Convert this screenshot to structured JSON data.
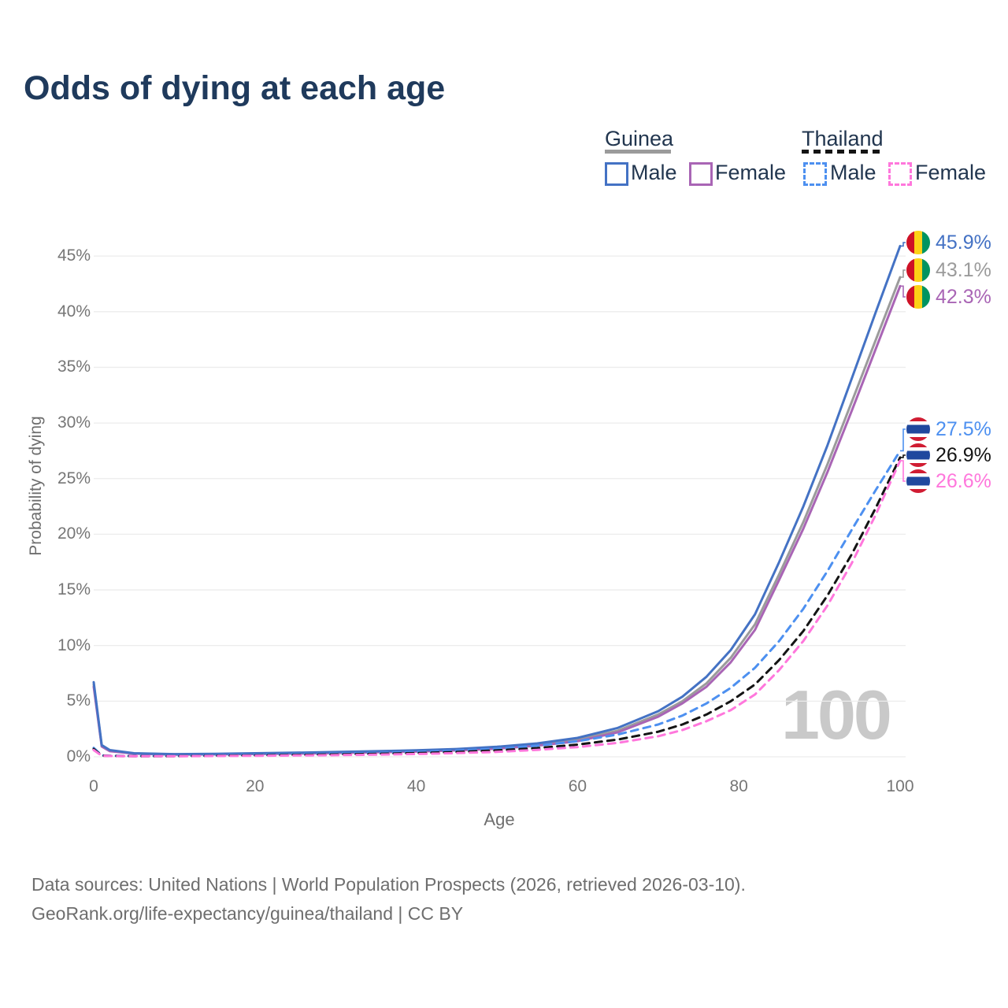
{
  "title": "Odds of dying at each age",
  "watermark": "100",
  "legend": {
    "groups": [
      {
        "name": "Guinea",
        "line_style": "solid",
        "entries": [
          {
            "label": "Male",
            "series_id": "guinea-male"
          },
          {
            "label": "Female",
            "series_id": "guinea-female"
          }
        ]
      },
      {
        "name": "Thailand",
        "line_style": "dashed",
        "entries": [
          {
            "label": "Male",
            "series_id": "thailand-male"
          },
          {
            "label": "Female",
            "series_id": "thailand-female"
          }
        ]
      }
    ]
  },
  "colors": {
    "title_text": "#1F3A5C",
    "legend_text": "#22364F",
    "axis_text": "#767676",
    "grid": "#ECECEC",
    "footer_text": "#6E6E6E",
    "watermark": "#C9C9C9",
    "guinea_flag": [
      "#CE1126",
      "#FCD116",
      "#009460"
    ],
    "thailand_flag": [
      "#D01C32",
      "#FFFFFF",
      "#20489E"
    ]
  },
  "chart_data": {
    "type": "line",
    "title": "Odds of dying at each age",
    "xlabel": "Age",
    "ylabel": "Probability of dying",
    "xlim": [
      0,
      100
    ],
    "ylim_percent": [
      0,
      46
    ],
    "x_ticks": [
      0,
      20,
      40,
      60,
      80,
      100
    ],
    "y_ticks_percent": [
      0,
      5,
      10,
      15,
      20,
      25,
      30,
      35,
      40,
      45
    ],
    "y_tick_suffix": "%",
    "grid": "horizontal",
    "legend_position": "top-right",
    "x": [
      0,
      1,
      2,
      5,
      10,
      15,
      20,
      25,
      30,
      35,
      40,
      45,
      50,
      55,
      60,
      65,
      70,
      73,
      76,
      79,
      82,
      85,
      88,
      91,
      94,
      97,
      100
    ],
    "series": [
      {
        "id": "guinea-male",
        "country": "Guinea",
        "group": "Male",
        "color": "#4472C4",
        "dash": false,
        "end_label": "45.9%",
        "end_value_percent": 45.9,
        "flag": "guinea",
        "values": [
          6.7,
          1.05,
          0.6,
          0.32,
          0.24,
          0.27,
          0.32,
          0.37,
          0.43,
          0.5,
          0.58,
          0.7,
          0.9,
          1.2,
          1.7,
          2.6,
          4.1,
          5.4,
          7.2,
          9.6,
          12.8,
          17.5,
          22.5,
          28.0,
          34.0,
          40.0,
          45.9
        ]
      },
      {
        "id": "guinea-both",
        "country": "Guinea",
        "group": "Both sexes",
        "color": "#9B9B9B",
        "dash": false,
        "end_label": "43.1%",
        "end_value_percent": 43.1,
        "flag": "guinea",
        "values": [
          6.5,
          0.98,
          0.55,
          0.3,
          0.22,
          0.24,
          0.28,
          0.33,
          0.38,
          0.44,
          0.52,
          0.63,
          0.8,
          1.1,
          1.55,
          2.35,
          3.8,
          5.0,
          6.6,
          8.9,
          11.9,
          16.4,
          21.1,
          26.3,
          31.9,
          37.5,
          43.1
        ]
      },
      {
        "id": "guinea-female",
        "country": "Guinea",
        "group": "Female",
        "color": "#A965B5",
        "dash": false,
        "end_label": "42.3%",
        "end_value_percent": 42.3,
        "flag": "guinea",
        "values": [
          6.3,
          0.92,
          0.5,
          0.28,
          0.2,
          0.22,
          0.25,
          0.29,
          0.34,
          0.4,
          0.47,
          0.57,
          0.73,
          1.0,
          1.4,
          2.2,
          3.6,
          4.8,
          6.3,
          8.5,
          11.4,
          15.9,
          20.5,
          25.6,
          31.1,
          36.7,
          42.3
        ]
      },
      {
        "id": "thailand-male",
        "country": "Thailand",
        "group": "Male",
        "color": "#4D90F0",
        "dash": true,
        "end_label": "27.5%",
        "end_value_percent": 27.5,
        "flag": "thailand",
        "values": [
          0.8,
          0.12,
          0.09,
          0.07,
          0.07,
          0.12,
          0.18,
          0.23,
          0.28,
          0.34,
          0.43,
          0.55,
          0.72,
          1.0,
          1.4,
          2.0,
          2.9,
          3.7,
          4.8,
          6.2,
          8.0,
          10.4,
          13.3,
          16.7,
          20.4,
          24.0,
          27.5
        ]
      },
      {
        "id": "thailand-both",
        "country": "Thailand",
        "group": "Both sexes",
        "color": "#141414",
        "dash": true,
        "end_label": "26.9%",
        "end_value_percent": 26.9,
        "flag": "thailand",
        "values": [
          0.7,
          0.1,
          0.08,
          0.06,
          0.06,
          0.09,
          0.13,
          0.17,
          0.21,
          0.26,
          0.33,
          0.43,
          0.57,
          0.78,
          1.1,
          1.55,
          2.25,
          2.9,
          3.8,
          5.0,
          6.5,
          8.7,
          11.3,
          14.5,
          18.2,
          22.4,
          26.9
        ]
      },
      {
        "id": "thailand-female",
        "country": "Thailand",
        "group": "Female",
        "color": "#FF77DC",
        "dash": true,
        "end_label": "26.6%",
        "end_value_percent": 26.6,
        "flag": "thailand",
        "values": [
          0.6,
          0.09,
          0.07,
          0.05,
          0.05,
          0.07,
          0.09,
          0.12,
          0.15,
          0.19,
          0.25,
          0.33,
          0.44,
          0.62,
          0.87,
          1.25,
          1.85,
          2.4,
          3.2,
          4.2,
          5.6,
          7.8,
          10.4,
          13.6,
          17.4,
          21.8,
          26.6
        ]
      }
    ]
  },
  "footer": {
    "line1": "Data sources: United Nations | World Population Prospects (2026, retrieved 2026-03-10).",
    "line2": "GeoRank.org/life-expectancy/guinea/thailand | CC BY"
  }
}
